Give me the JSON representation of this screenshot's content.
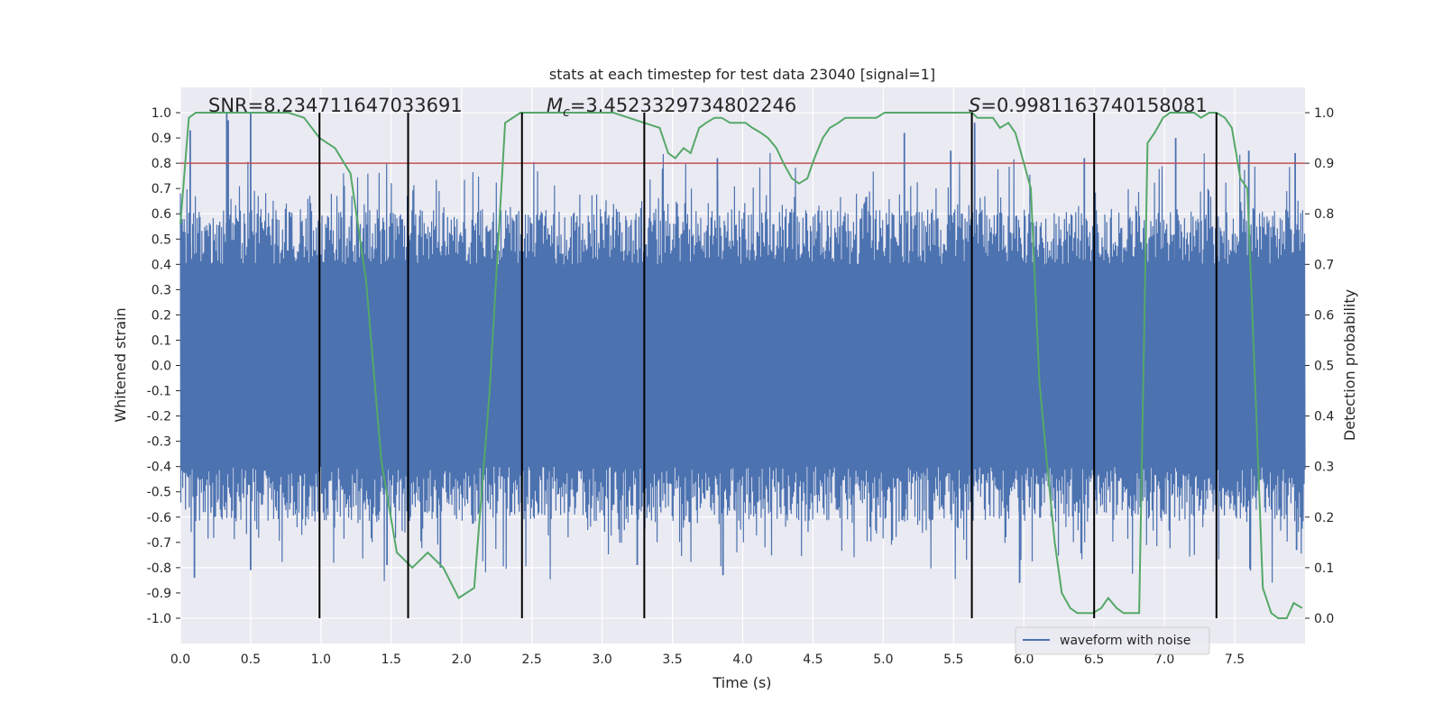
{
  "chart_data": {
    "type": "line",
    "title": "stats at each timestep for test data 23040 [signal=1]",
    "xlabel": "Time (s)",
    "ylabel": "Whitened strain",
    "y2label": "Detection probability",
    "xlim": [
      0.0,
      8.0
    ],
    "ylim": [
      -1.1,
      1.1
    ],
    "y2lim": [
      -0.05,
      1.05
    ],
    "x_ticks": [
      0.0,
      0.5,
      1.0,
      1.5,
      2.0,
      2.5,
      3.0,
      3.5,
      4.0,
      4.5,
      5.0,
      5.5,
      6.0,
      6.5,
      7.0,
      7.5
    ],
    "x_tick_labels": [
      "0.0",
      "0.5",
      "1.0",
      "1.5",
      "2.0",
      "2.5",
      "3.0",
      "3.5",
      "4.0",
      "4.5",
      "5.0",
      "5.5",
      "6.0",
      "6.5",
      "7.0",
      "7.5"
    ],
    "y_ticks": [
      -1.0,
      -0.9,
      -0.8,
      -0.7,
      -0.6,
      -0.5,
      -0.4,
      -0.3,
      -0.2,
      -0.1,
      0.0,
      0.1,
      0.2,
      0.3,
      0.4,
      0.5,
      0.6,
      0.7,
      0.8,
      0.9,
      1.0
    ],
    "y_tick_labels": [
      "-1.0",
      "-0.9",
      "-0.8",
      "-0.7",
      "-0.6",
      "-0.5",
      "-0.4",
      "-0.3",
      "-0.2",
      "-0.1",
      "0.0",
      "0.1",
      "0.2",
      "0.3",
      "0.4",
      "0.5",
      "0.6",
      "0.7",
      "0.8",
      "0.9",
      "1.0"
    ],
    "y2_ticks": [
      0.0,
      0.1,
      0.2,
      0.3,
      0.4,
      0.5,
      0.6,
      0.7,
      0.8,
      0.9,
      1.0
    ],
    "y2_tick_labels": [
      "0.0",
      "0.1",
      "0.2",
      "0.3",
      "0.4",
      "0.5",
      "0.6",
      "0.7",
      "0.8",
      "0.9",
      "1.0"
    ],
    "annotations": {
      "snr": "SNR=8.234711647033691",
      "mc_symbol": "M",
      "mc_sub": "c",
      "mc_value": "=3.4523329734802246",
      "s_symbol": "S",
      "s_value": "=0.9981163740158081"
    },
    "legend": {
      "label": "waveform with noise",
      "loc": "lower-right"
    },
    "waveform": {
      "name": "waveform with noise",
      "color": "#4c72b0",
      "envelope": 0.4,
      "num_samples": 2400,
      "x_range": [
        0.0,
        8.0
      ],
      "peaks": [
        {
          "x": 0.07,
          "y": 0.93
        },
        {
          "x": 0.1,
          "y": -0.84
        },
        {
          "x": 0.33,
          "y": 1.0
        },
        {
          "x": 0.5,
          "y": 1.0
        },
        {
          "x": 0.5,
          "y": -0.81
        },
        {
          "x": 0.34,
          "y": 0.97
        },
        {
          "x": 1.47,
          "y": -0.79
        },
        {
          "x": 1.85,
          "y": -0.8
        },
        {
          "x": 3.25,
          "y": -0.79
        },
        {
          "x": 3.82,
          "y": 0.82
        },
        {
          "x": 3.86,
          "y": -0.83
        },
        {
          "x": 5.15,
          "y": 0.92
        },
        {
          "x": 5.48,
          "y": 0.85
        },
        {
          "x": 5.65,
          "y": 0.96
        },
        {
          "x": 5.97,
          "y": -0.86
        },
        {
          "x": 6.43,
          "y": 0.82
        },
        {
          "x": 7.08,
          "y": 0.9
        },
        {
          "x": 7.93,
          "y": 0.84
        },
        {
          "x": 7.94,
          "y": -0.73
        },
        {
          "x": 7.6,
          "y": 0.85
        }
      ]
    },
    "detection_probability": {
      "color": "#55a868",
      "x": [
        0.0,
        0.06,
        0.11,
        0.22,
        0.33,
        0.44,
        0.55,
        0.66,
        0.77,
        0.88,
        0.99,
        1.1,
        1.21,
        1.32,
        1.43,
        1.54,
        1.65,
        1.76,
        1.87,
        1.98,
        2.09,
        2.2,
        2.31,
        2.42,
        2.53,
        2.64,
        2.75,
        2.86,
        2.97,
        3.08,
        3.19,
        3.3,
        3.41,
        3.47,
        3.52,
        3.58,
        3.63,
        3.69,
        3.74,
        3.8,
        3.85,
        3.91,
        3.96,
        4.02,
        4.07,
        4.13,
        4.18,
        4.24,
        4.29,
        4.35,
        4.4,
        4.46,
        4.51,
        4.57,
        4.62,
        4.68,
        4.73,
        4.79,
        4.84,
        4.9,
        4.95,
        5.01,
        5.06,
        5.12,
        5.17,
        5.23,
        5.28,
        5.34,
        5.39,
        5.45,
        5.5,
        5.56,
        5.61,
        5.63,
        5.67,
        5.72,
        5.78,
        5.83,
        5.89,
        5.94,
        6.0,
        6.05,
        6.11,
        6.16,
        6.22,
        6.27,
        6.33,
        6.38,
        6.44,
        6.49,
        6.55,
        6.6,
        6.66,
        6.71,
        6.77,
        6.82,
        6.88,
        6.93,
        6.99,
        7.04,
        7.1,
        7.15,
        7.21,
        7.26,
        7.32,
        7.37,
        7.43,
        7.48,
        7.54,
        7.59,
        7.65,
        7.7,
        7.76,
        7.81,
        7.87,
        7.92,
        7.98
      ],
      "y": [
        0.78,
        0.99,
        1.0,
        1.0,
        1.0,
        1.0,
        1.0,
        1.0,
        1.0,
        0.99,
        0.95,
        0.93,
        0.88,
        0.67,
        0.31,
        0.13,
        0.1,
        0.13,
        0.1,
        0.04,
        0.06,
        0.45,
        0.98,
        1.0,
        1.0,
        1.0,
        1.0,
        1.0,
        1.0,
        1.0,
        0.99,
        0.98,
        0.97,
        0.92,
        0.91,
        0.93,
        0.92,
        0.97,
        0.98,
        0.99,
        0.99,
        0.98,
        0.98,
        0.98,
        0.97,
        0.96,
        0.95,
        0.93,
        0.9,
        0.87,
        0.86,
        0.87,
        0.91,
        0.95,
        0.97,
        0.98,
        0.99,
        0.99,
        0.99,
        0.99,
        0.99,
        1.0,
        1.0,
        1.0,
        1.0,
        1.0,
        1.0,
        1.0,
        1.0,
        1.0,
        1.0,
        1.0,
        1.0,
        1.0,
        0.99,
        0.99,
        0.99,
        0.97,
        0.98,
        0.96,
        0.9,
        0.85,
        0.47,
        0.32,
        0.15,
        0.05,
        0.02,
        0.01,
        0.01,
        0.01,
        0.02,
        0.04,
        0.02,
        0.01,
        0.01,
        0.01,
        0.94,
        0.96,
        0.99,
        1.0,
        1.0,
        1.0,
        1.0,
        0.99,
        1.0,
        1.0,
        0.99,
        0.97,
        0.87,
        0.85,
        0.43,
        0.06,
        0.01,
        0.0,
        0.0,
        0.03,
        0.02
      ]
    },
    "threshold": {
      "y2": 0.9,
      "color": "#c44e52"
    },
    "vertical_lines": [
      {
        "x": 0.99,
        "color": "#000000"
      },
      {
        "x": 1.62,
        "color": "#000000"
      },
      {
        "x": 2.43,
        "color": "#000000"
      },
      {
        "x": 3.3,
        "color": "#000000"
      },
      {
        "x": 5.63,
        "color": "#000000"
      },
      {
        "x": 6.5,
        "color": "#000000"
      },
      {
        "x": 7.37,
        "color": "#000000"
      }
    ],
    "colors": {
      "plot_bg": "#eaeaf2",
      "grid": "#ffffff",
      "text": "#262626"
    }
  }
}
